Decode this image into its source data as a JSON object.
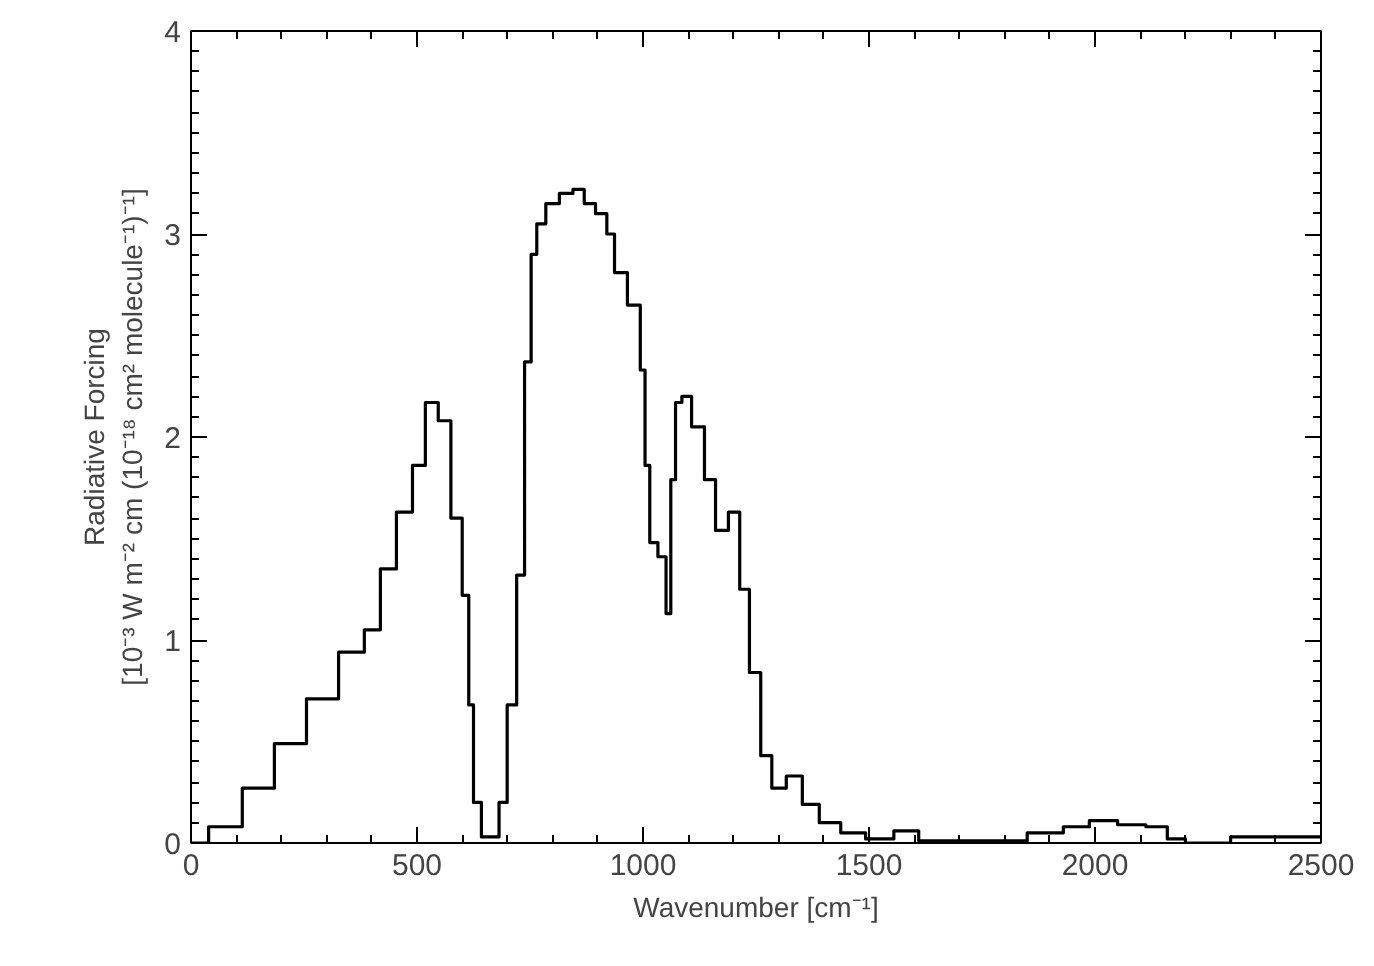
{
  "chart_data": {
    "type": "step",
    "xlabel": "Wavenumber [cm⁻¹]",
    "ylabel": "Radiative Forcing\n[10⁻³ W m⁻² cm (10⁻¹⁸ cm² molecule⁻¹)⁻¹]",
    "x": [
      0,
      78,
      149,
      220,
      291,
      362,
      405,
      433,
      476,
      504,
      533,
      561,
      589,
      611,
      618,
      632,
      653,
      674,
      689,
      710,
      731,
      745,
      760,
      770,
      800,
      830,
      860,
      880,
      910,
      930,
      944,
      987,
      1001,
      1008,
      1022,
      1044,
      1058,
      1065,
      1079,
      1093,
      1122,
      1150,
      1171,
      1207,
      1221,
      1250,
      1271,
      1299,
      1335,
      1370,
      1410,
      1465,
      1520,
      1590,
      1630,
      1800,
      1900,
      1960,
      2015,
      2085,
      2140,
      2180,
      2220,
      2380,
      2440,
      2500
    ],
    "series": [
      {
        "color": "#000000",
        "values": [
          0,
          0.08,
          0.27,
          0.49,
          0.71,
          0.94,
          1.05,
          1.35,
          1.63,
          1.86,
          2.17,
          2.08,
          1.6,
          1.22,
          0.68,
          0.2,
          0.03,
          0.03,
          0.2,
          0.68,
          1.32,
          2.37,
          2.9,
          3.05,
          3.15,
          3.2,
          3.22,
          3.15,
          3.1,
          3.0,
          2.81,
          2.65,
          2.33,
          1.86,
          1.48,
          1.41,
          1.13,
          1.79,
          2.17,
          2.2,
          2.05,
          1.79,
          1.54,
          1.63,
          1.25,
          0.84,
          0.43,
          0.27,
          0.33,
          0.19,
          0.1,
          0.05,
          0.02,
          0.06,
          0.01,
          0.01,
          0.05,
          0.08,
          0.11,
          0.09,
          0.08,
          0.02,
          0,
          0.03,
          0.03,
          0.03
        ]
      }
    ],
    "xlim": [
      0,
      2500
    ],
    "xticks": [
      0,
      500,
      1000,
      1500,
      2000,
      2500
    ],
    "ylim": [
      0,
      4
    ],
    "yticks": [
      0,
      1,
      2,
      3,
      4
    ],
    "grid": false,
    "line_style": "solid"
  }
}
